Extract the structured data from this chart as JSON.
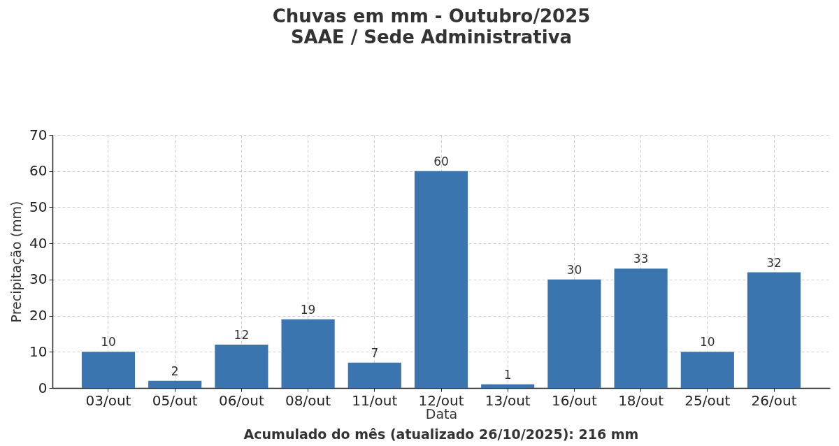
{
  "chart_data": {
    "type": "bar",
    "title": "Chuvas em mm - Outubro/2025",
    "subtitle": "SAAE / Sede Administrativa",
    "xlabel": "Data",
    "ylabel": "Precipitação (mm)",
    "categories": [
      "03/out",
      "05/out",
      "06/out",
      "08/out",
      "11/out",
      "12/out",
      "13/out",
      "16/out",
      "18/out",
      "25/out",
      "26/out"
    ],
    "values": [
      10,
      2,
      12,
      19,
      7,
      60,
      1,
      30,
      33,
      10,
      32
    ],
    "color": "#3a75b0",
    "ylim": [
      0,
      70
    ],
    "yticks": [
      0,
      10,
      20,
      30,
      40,
      50,
      60,
      70
    ],
    "grid": true,
    "data_labels": true,
    "annotations": [
      "Acumulado do mês (atualizado 26/10/2025): 216 mm"
    ]
  }
}
